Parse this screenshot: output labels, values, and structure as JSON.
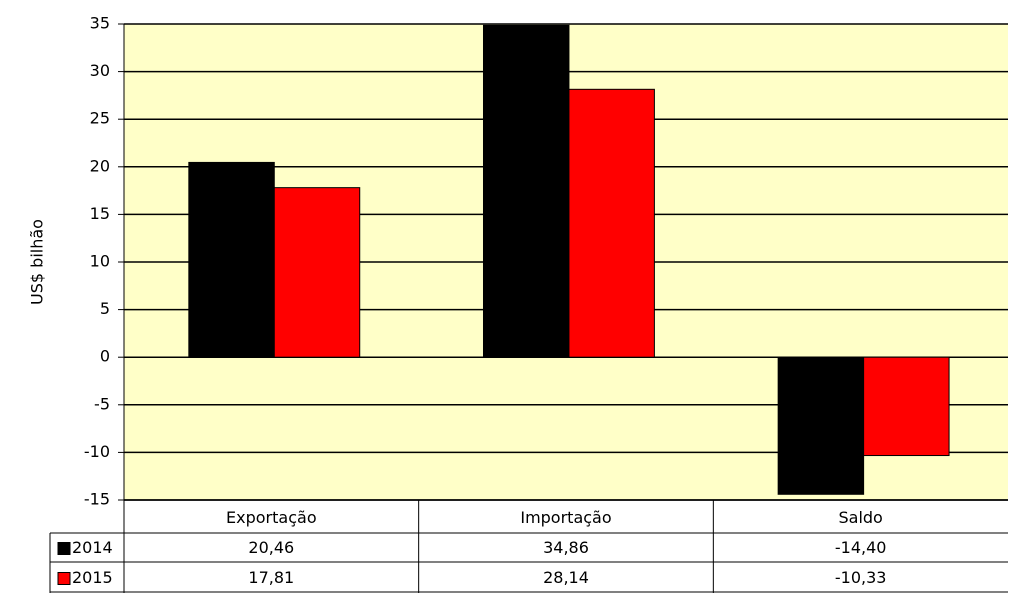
{
  "chart_data": {
    "type": "bar",
    "y_label": "US$ bilhão",
    "categories": [
      "Exportação",
      "Importação",
      "Saldo"
    ],
    "series": [
      {
        "name": "2014",
        "color": "#000000",
        "values": [
          20.46,
          34.86,
          -14.4
        ],
        "value_labels": [
          "20,46",
          "34,86",
          "-14,40"
        ]
      },
      {
        "name": "2015",
        "color": "#ff0000",
        "values": [
          17.81,
          28.14,
          -10.33
        ],
        "value_labels": [
          "17,81",
          "28,14",
          "-10,33"
        ]
      }
    ],
    "ylim": [
      -15,
      35
    ],
    "yticks": [
      -15,
      -10,
      -5,
      0,
      5,
      10,
      15,
      20,
      25,
      30,
      35
    ],
    "grid": true,
    "background": "#ffffc8"
  }
}
